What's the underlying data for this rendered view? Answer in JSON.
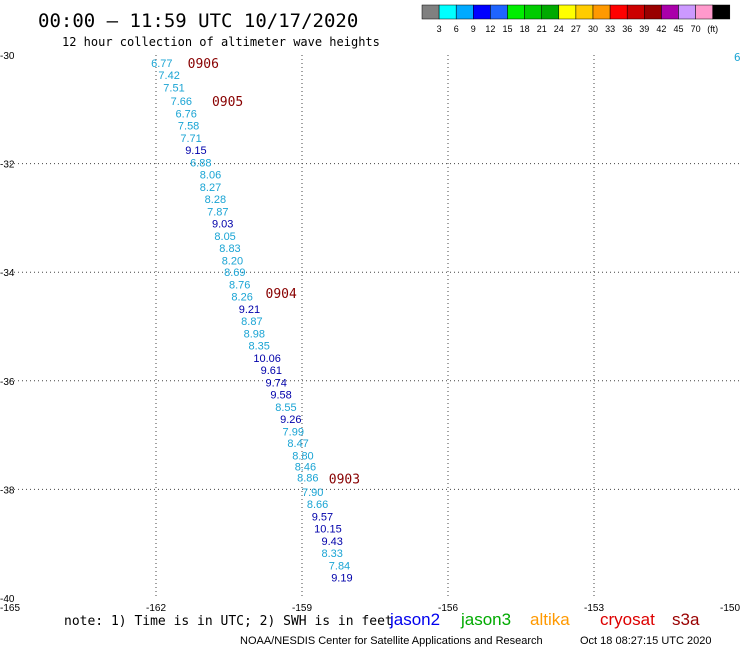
{
  "header": {
    "title": "00:00 – 11:59 UTC 10/17/2020",
    "subtitle": "12 hour collection of altimeter wave heights"
  },
  "scale": {
    "colors": [
      "#808080",
      "#00ffff",
      "#00aaff",
      "#0000ff",
      "#1f64ff",
      "#00ee00",
      "#00cc00",
      "#00aa00",
      "#ffff00",
      "#ffcc00",
      "#ff9900",
      "#ff0000",
      "#cc0000",
      "#990000",
      "#aa00aa",
      "#cc99ff",
      "#ff99cc",
      "#000000"
    ],
    "labels": [
      "3",
      "6",
      "9",
      "12",
      "15",
      "18",
      "21",
      "24",
      "27",
      "30",
      "33",
      "36",
      "39",
      "42",
      "45",
      "70",
      "(ft)"
    ]
  },
  "footer": {
    "note": "note: 1) Time is in UTC; 2) SWH is in feet",
    "credit": "NOAA/NESDIS Center for Satellite Applications and Research",
    "timestamp": "Oct 18 08:27:15 UTC 2020"
  },
  "legend": [
    {
      "name": "jason2",
      "color": "#0000ee"
    },
    {
      "name": "jason3",
      "color": "#00aa00"
    },
    {
      "name": "altika",
      "color": "#ff9900"
    },
    {
      "name": "cryosat",
      "color": "#dd0000"
    },
    {
      "name": "s3a",
      "color": "#990000"
    }
  ],
  "chart_data": {
    "type": "scatter",
    "xlim": [
      -165,
      -150
    ],
    "ylim": [
      -40,
      -30
    ],
    "x_ticks": [
      "-165",
      "-162",
      "-159",
      "-156",
      "-153",
      "-150"
    ],
    "y_ticks": [
      "-30",
      "-32",
      "-34",
      "-36",
      "-38",
      "-40"
    ],
    "grid": true,
    "edge_label": "6",
    "points": [
      {
        "x": -162.1,
        "y": -30.15,
        "label": "6.77",
        "color": "#1aa4d4"
      },
      {
        "x": -161.95,
        "y": -30.37,
        "label": "7.42",
        "color": "#1aa4d4"
      },
      {
        "x": -161.85,
        "y": -30.6,
        "label": "7.51",
        "color": "#1aa4d4"
      },
      {
        "x": -161.7,
        "y": -30.85,
        "label": "7.66",
        "color": "#1aa4d4"
      },
      {
        "x": -161.6,
        "y": -31.08,
        "label": "6.76",
        "color": "#1aa4d4"
      },
      {
        "x": -161.55,
        "y": -31.3,
        "label": "7.58",
        "color": "#1aa4d4"
      },
      {
        "x": -161.5,
        "y": -31.53,
        "label": "7.71",
        "color": "#1aa4d4"
      },
      {
        "x": -161.4,
        "y": -31.75,
        "label": "9.15",
        "color": "#0000aa"
      },
      {
        "x": -161.3,
        "y": -31.98,
        "label": "6.88",
        "color": "#1aa4d4"
      },
      {
        "x": -161.1,
        "y": -32.2,
        "label": "8.06",
        "color": "#1aa4d4"
      },
      {
        "x": -161.1,
        "y": -32.43,
        "label": "8.27",
        "color": "#1aa4d4"
      },
      {
        "x": -161.0,
        "y": -32.65,
        "label": "8.28",
        "color": "#1aa4d4"
      },
      {
        "x": -160.95,
        "y": -32.88,
        "label": "7.87",
        "color": "#1aa4d4"
      },
      {
        "x": -160.85,
        "y": -33.1,
        "label": "9.03",
        "color": "#0000aa"
      },
      {
        "x": -160.8,
        "y": -33.33,
        "label": "8.05",
        "color": "#1aa4d4"
      },
      {
        "x": -160.7,
        "y": -33.55,
        "label": "8.83",
        "color": "#1aa4d4"
      },
      {
        "x": -160.65,
        "y": -33.78,
        "label": "8.20",
        "color": "#1aa4d4"
      },
      {
        "x": -160.6,
        "y": -34.0,
        "label": "8.69",
        "color": "#1aa4d4"
      },
      {
        "x": -160.5,
        "y": -34.23,
        "label": "8.76",
        "color": "#1aa4d4"
      },
      {
        "x": -160.45,
        "y": -34.45,
        "label": "8.26",
        "color": "#1aa4d4"
      },
      {
        "x": -160.3,
        "y": -34.68,
        "label": "9.21",
        "color": "#0000aa"
      },
      {
        "x": -160.25,
        "y": -34.9,
        "label": "8.87",
        "color": "#1aa4d4"
      },
      {
        "x": -160.2,
        "y": -35.13,
        "label": "8.98",
        "color": "#1aa4d4"
      },
      {
        "x": -160.1,
        "y": -35.35,
        "label": "8.35",
        "color": "#1aa4d4"
      },
      {
        "x": -160.0,
        "y": -35.58,
        "label": "10.06",
        "color": "#0000aa"
      },
      {
        "x": -159.85,
        "y": -35.8,
        "label": "9.61",
        "color": "#0000aa"
      },
      {
        "x": -159.75,
        "y": -36.03,
        "label": "9.74",
        "color": "#0000aa"
      },
      {
        "x": -159.65,
        "y": -36.25,
        "label": "9.58",
        "color": "#0000aa"
      },
      {
        "x": -159.55,
        "y": -36.48,
        "label": "8.55",
        "color": "#1aa4d4"
      },
      {
        "x": -159.45,
        "y": -36.7,
        "label": "9.26",
        "color": "#0000aa"
      },
      {
        "x": -159.4,
        "y": -36.93,
        "label": "7.99",
        "color": "#1aa4d4"
      },
      {
        "x": -159.3,
        "y": -37.15,
        "label": "8.47",
        "color": "#1aa4d4"
      },
      {
        "x": -159.2,
        "y": -37.38,
        "label": "8.80",
        "color": "#1aa4d4"
      },
      {
        "x": -159.15,
        "y": -37.58,
        "label": "8.46",
        "color": "#1aa4d4"
      },
      {
        "x": -159.1,
        "y": -37.78,
        "label": "8.86",
        "color": "#1aa4d4"
      },
      {
        "x": -159.0,
        "y": -38.05,
        "label": "7.90",
        "color": "#1aa4d4"
      },
      {
        "x": -158.9,
        "y": -38.27,
        "label": "8.66",
        "color": "#1aa4d4"
      },
      {
        "x": -158.8,
        "y": -38.5,
        "label": "9.57",
        "color": "#0000aa"
      },
      {
        "x": -158.75,
        "y": -38.72,
        "label": "10.15",
        "color": "#0000aa"
      },
      {
        "x": -158.6,
        "y": -38.95,
        "label": "9.43",
        "color": "#0000aa"
      },
      {
        "x": -158.6,
        "y": -39.17,
        "label": "8.33",
        "color": "#1aa4d4"
      },
      {
        "x": -158.45,
        "y": -39.4,
        "label": "7.84",
        "color": "#1aa4d4"
      },
      {
        "x": -158.4,
        "y": -39.62,
        "label": "9.19",
        "color": "#0000aa"
      }
    ],
    "time_labels": [
      {
        "x": -161.35,
        "y": -30.15,
        "label": "0906"
      },
      {
        "x": -160.85,
        "y": -30.85,
        "label": "0905"
      },
      {
        "x": -159.75,
        "y": -34.38,
        "label": "0904"
      },
      {
        "x": -158.45,
        "y": -37.8,
        "label": "0903"
      }
    ]
  }
}
